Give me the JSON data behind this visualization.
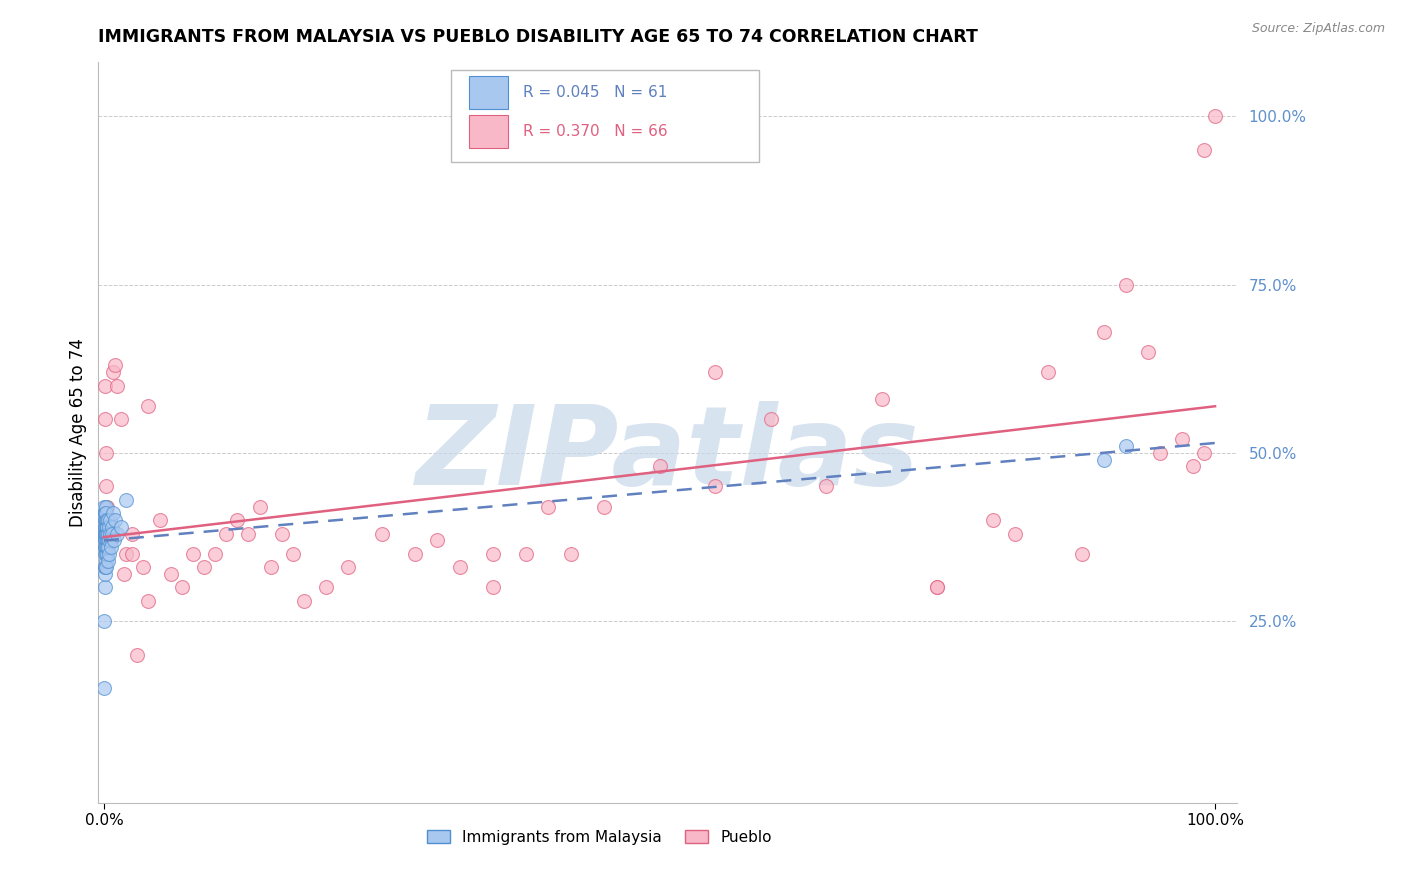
{
  "title": "IMMIGRANTS FROM MALAYSIA VS PUEBLO DISABILITY AGE 65 TO 74 CORRELATION CHART",
  "source": "Source: ZipAtlas.com",
  "ylabel": "Disability Age 65 to 74",
  "blue_R": 0.045,
  "blue_N": 61,
  "pink_R": 0.37,
  "pink_N": 66,
  "blue_color": "#a8c8f0",
  "pink_color": "#f8b8c8",
  "blue_edge_color": "#5090d0",
  "pink_edge_color": "#e06080",
  "blue_line_color": "#6080c0",
  "pink_line_color": "#e06080",
  "background_color": "#ffffff",
  "grid_color": "#cccccc",
  "watermark_color": "#c8d8ea",
  "right_label_color": "#6090cc",
  "blue_points_x": [
    0.0002,
    0.0003,
    0.0004,
    0.0004,
    0.0005,
    0.0005,
    0.0006,
    0.0006,
    0.0007,
    0.0007,
    0.0008,
    0.0008,
    0.0009,
    0.001,
    0.001,
    0.0011,
    0.0011,
    0.0012,
    0.0012,
    0.0013,
    0.0013,
    0.0014,
    0.0014,
    0.0015,
    0.0015,
    0.0016,
    0.0017,
    0.0018,
    0.0018,
    0.002,
    0.0021,
    0.0022,
    0.0023,
    0.0024,
    0.0025,
    0.0026,
    0.0027,
    0.0028,
    0.003,
    0.0032,
    0.0034,
    0.0036,
    0.0038,
    0.004,
    0.0042,
    0.0045,
    0.0048,
    0.005,
    0.0055,
    0.006,
    0.0065,
    0.007,
    0.0075,
    0.008,
    0.009,
    0.01,
    0.012,
    0.015,
    0.02,
    0.9,
    0.92
  ],
  "blue_points_y": [
    0.38,
    0.15,
    0.25,
    0.42,
    0.33,
    0.37,
    0.3,
    0.41,
    0.36,
    0.38,
    0.32,
    0.39,
    0.4,
    0.35,
    0.38,
    0.33,
    0.4,
    0.37,
    0.41,
    0.36,
    0.39,
    0.34,
    0.38,
    0.42,
    0.35,
    0.39,
    0.37,
    0.4,
    0.36,
    0.38,
    0.33,
    0.41,
    0.37,
    0.39,
    0.35,
    0.38,
    0.4,
    0.36,
    0.39,
    0.37,
    0.34,
    0.38,
    0.36,
    0.4,
    0.37,
    0.35,
    0.39,
    0.38,
    0.4,
    0.37,
    0.36,
    0.39,
    0.38,
    0.41,
    0.37,
    0.4,
    0.38,
    0.39,
    0.43,
    0.49,
    0.51
  ],
  "pink_points_x": [
    0.0005,
    0.001,
    0.0015,
    0.002,
    0.003,
    0.005,
    0.008,
    0.01,
    0.015,
    0.02,
    0.025,
    0.03,
    0.035,
    0.04,
    0.05,
    0.06,
    0.07,
    0.08,
    0.09,
    0.1,
    0.11,
    0.12,
    0.13,
    0.14,
    0.15,
    0.16,
    0.18,
    0.2,
    0.22,
    0.25,
    0.28,
    0.3,
    0.32,
    0.35,
    0.38,
    0.4,
    0.42,
    0.45,
    0.5,
    0.55,
    0.6,
    0.65,
    0.7,
    0.75,
    0.8,
    0.82,
    0.85,
    0.88,
    0.9,
    0.92,
    0.94,
    0.95,
    0.97,
    0.98,
    0.99,
    0.99,
    1.0,
    0.006,
    0.012,
    0.018,
    0.04,
    0.025,
    0.17,
    0.35,
    0.55,
    0.75
  ],
  "pink_points_y": [
    0.6,
    0.55,
    0.5,
    0.45,
    0.42,
    0.38,
    0.62,
    0.63,
    0.55,
    0.35,
    0.38,
    0.2,
    0.33,
    0.28,
    0.4,
    0.32,
    0.3,
    0.35,
    0.33,
    0.35,
    0.38,
    0.4,
    0.38,
    0.42,
    0.33,
    0.38,
    0.28,
    0.3,
    0.33,
    0.38,
    0.35,
    0.37,
    0.33,
    0.3,
    0.35,
    0.42,
    0.35,
    0.42,
    0.48,
    0.62,
    0.55,
    0.45,
    0.58,
    0.3,
    0.4,
    0.38,
    0.62,
    0.35,
    0.68,
    0.75,
    0.65,
    0.5,
    0.52,
    0.48,
    0.95,
    0.5,
    1.0,
    0.37,
    0.6,
    0.32,
    0.57,
    0.35,
    0.35,
    0.35,
    0.45,
    0.3
  ]
}
